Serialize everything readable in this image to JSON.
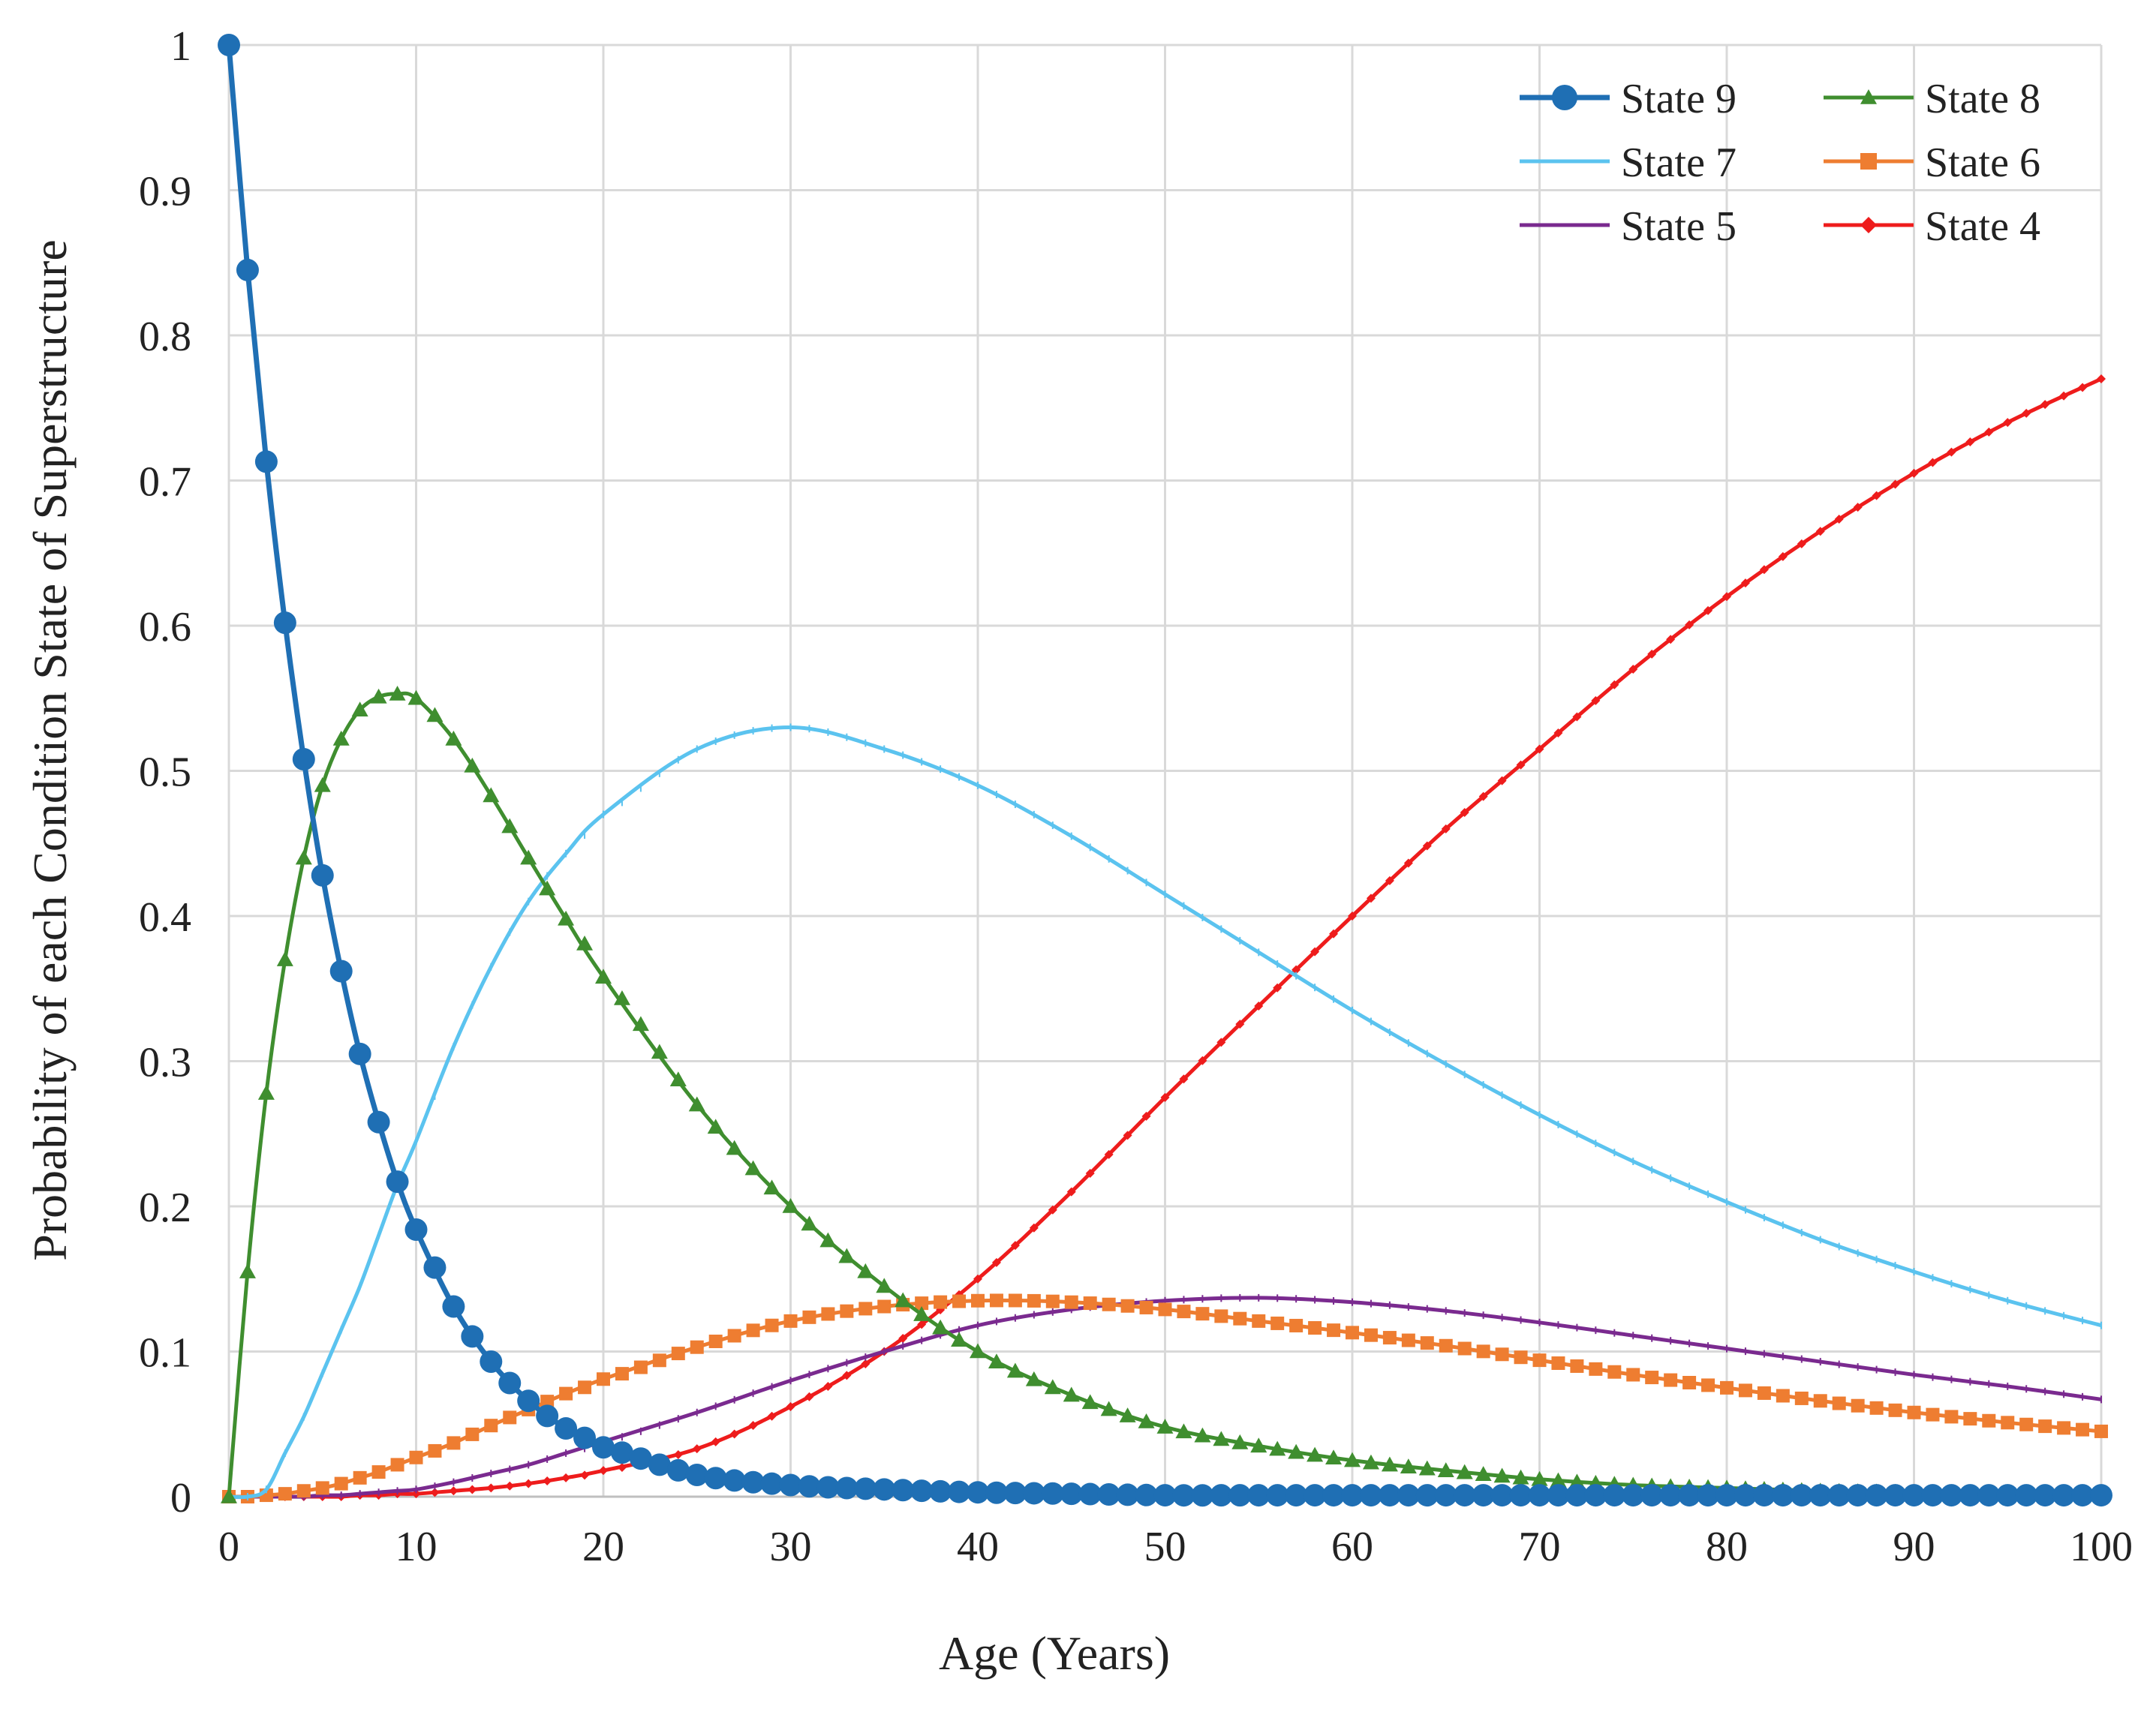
{
  "chart_data": {
    "type": "line",
    "title": "",
    "xlabel": "Age (Years)",
    "ylabel": "Probability of each Condition State of Superstructure",
    "xlim": [
      0,
      100
    ],
    "ylim": [
      0,
      1
    ],
    "grid": true,
    "legend_position": "top-right",
    "x_ticks": [
      "0",
      "10",
      "20",
      "30",
      "40",
      "50",
      "60",
      "70",
      "80",
      "90",
      "100"
    ],
    "y_ticks": [
      "0",
      "0.1",
      "0.2",
      "0.3",
      "0.4",
      "0.5",
      "0.6",
      "0.7",
      "0.8",
      "0.9",
      "1"
    ],
    "x": [
      0,
      1,
      2,
      3,
      4,
      5,
      6,
      7,
      8,
      9,
      10,
      12,
      14,
      16,
      18,
      20,
      25,
      30,
      35,
      40,
      45,
      50,
      55,
      60,
      65,
      70,
      75,
      80,
      85,
      90,
      95,
      100
    ],
    "series": [
      {
        "name": "State 9",
        "color": "#1f6fb4",
        "marker": "circle",
        "values": [
          1.0,
          0.845,
          0.713,
          0.602,
          0.508,
          0.428,
          0.362,
          0.305,
          0.258,
          0.217,
          0.184,
          0.131,
          0.093,
          0.066,
          0.047,
          0.034,
          0.015,
          0.008,
          0.005,
          0.003,
          0.002,
          0.001,
          0.001,
          0.001,
          0.001,
          0.001,
          0.001,
          0.001,
          0.001,
          0.001,
          0.001,
          0.001
        ]
      },
      {
        "name": "State 8",
        "color": "#3f8e2f",
        "marker": "triangle",
        "values": [
          0.0,
          0.155,
          0.278,
          0.37,
          0.44,
          0.49,
          0.522,
          0.542,
          0.551,
          0.553,
          0.55,
          0.522,
          0.483,
          0.44,
          0.398,
          0.358,
          0.27,
          0.2,
          0.145,
          0.1,
          0.07,
          0.048,
          0.035,
          0.025,
          0.018,
          0.012,
          0.008,
          0.006,
          0.004,
          0.003,
          0.002,
          0.002
        ]
      },
      {
        "name": "State 7",
        "color": "#5bc3ef",
        "marker": "none",
        "values": [
          0.0,
          0.0,
          0.005,
          0.03,
          0.055,
          0.085,
          0.115,
          0.145,
          0.18,
          0.215,
          0.245,
          0.31,
          0.365,
          0.41,
          0.443,
          0.47,
          0.515,
          0.53,
          0.515,
          0.49,
          0.455,
          0.415,
          0.375,
          0.335,
          0.298,
          0.263,
          0.231,
          0.203,
          0.177,
          0.155,
          0.135,
          0.118
        ]
      },
      {
        "name": "State 6",
        "color": "#ee7d31",
        "marker": "square",
        "values": [
          0.0,
          0.0,
          0.001,
          0.002,
          0.004,
          0.006,
          0.009,
          0.013,
          0.017,
          0.022,
          0.027,
          0.037,
          0.049,
          0.06,
          0.071,
          0.081,
          0.103,
          0.121,
          0.131,
          0.135,
          0.134,
          0.129,
          0.121,
          0.113,
          0.104,
          0.094,
          0.084,
          0.075,
          0.066,
          0.058,
          0.051,
          0.045
        ]
      },
      {
        "name": "State 5",
        "color": "#7a2a8f",
        "marker": "none",
        "values": [
          0.0,
          0.0,
          0.0,
          0.0,
          0.0,
          0.001,
          0.001,
          0.002,
          0.003,
          0.004,
          0.005,
          0.01,
          0.016,
          0.022,
          0.03,
          0.038,
          0.058,
          0.08,
          0.1,
          0.118,
          0.129,
          0.135,
          0.137,
          0.134,
          0.128,
          0.12,
          0.111,
          0.102,
          0.093,
          0.084,
          0.076,
          0.067
        ]
      },
      {
        "name": "State 4",
        "color": "#ee1c1c",
        "marker": "diamond",
        "values": [
          0.0,
          0.0,
          0.0,
          0.0,
          0.0,
          0.0,
          0.0,
          0.001,
          0.001,
          0.002,
          0.002,
          0.004,
          0.006,
          0.009,
          0.013,
          0.018,
          0.033,
          0.062,
          0.1,
          0.15,
          0.21,
          0.275,
          0.338,
          0.4,
          0.46,
          0.515,
          0.57,
          0.62,
          0.665,
          0.705,
          0.74,
          0.77
        ]
      }
    ]
  }
}
